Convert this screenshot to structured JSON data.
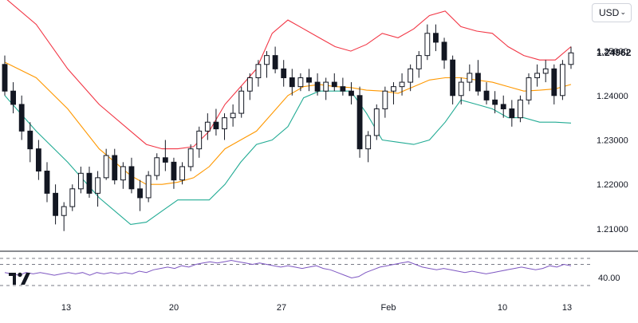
{
  "currency_selector": {
    "value": "USD"
  },
  "price_label": "1.24962",
  "chart_data": [
    {
      "type": "candlestick",
      "title": "",
      "indicators": [
        "Bollinger Bands (upper, middle, lower)"
      ],
      "x_tick_labels": [
        "13",
        "20",
        "27",
        "Feb",
        "10",
        "13"
      ],
      "y_tick_labels": [
        "1.21000",
        "1.22000",
        "1.23000",
        "1.24000",
        "1.25000"
      ],
      "ylim": [
        1.2055,
        1.2615
      ],
      "last_price": 1.24962,
      "colors": {
        "up_candle": "#ffffff",
        "down_candle": "#131722",
        "upper_band": "#f23645",
        "middle_band": "#ff9800",
        "lower_band": "#22ab94"
      },
      "series": [
        {
          "name": "upper-band",
          "x": [
            0,
            4,
            8,
            12,
            16,
            18,
            20,
            22,
            24,
            26,
            28,
            30,
            32,
            34,
            36,
            38,
            40,
            42,
            44,
            46,
            48,
            50,
            52,
            54,
            56,
            58,
            60,
            62,
            64,
            66,
            68,
            70,
            72
          ],
          "values": [
            1.262,
            1.256,
            1.246,
            1.238,
            1.232,
            1.229,
            1.228,
            1.228,
            1.2285,
            1.232,
            1.238,
            1.242,
            1.246,
            1.254,
            1.257,
            1.255,
            1.253,
            1.251,
            1.25,
            1.2515,
            1.254,
            1.253,
            1.255,
            1.258,
            1.259,
            1.2555,
            1.2545,
            1.254,
            1.251,
            1.249,
            1.248,
            1.248,
            1.251
          ]
        },
        {
          "name": "middle-band",
          "x": [
            0,
            4,
            8,
            12,
            16,
            18,
            20,
            22,
            24,
            26,
            28,
            30,
            32,
            34,
            36,
            38,
            40,
            42,
            44,
            46,
            48,
            50,
            52,
            54,
            56,
            58,
            60,
            62,
            64,
            66,
            68,
            70,
            72
          ],
          "values": [
            1.2475,
            1.244,
            1.237,
            1.228,
            1.222,
            1.22,
            1.22,
            1.2205,
            1.2215,
            1.224,
            1.228,
            1.23,
            1.232,
            1.236,
            1.24,
            1.242,
            1.2425,
            1.242,
            1.2418,
            1.2412,
            1.241,
            1.2405,
            1.242,
            1.2435,
            1.244,
            1.244,
            1.2435,
            1.243,
            1.242,
            1.241,
            1.2412,
            1.2415,
            1.2425
          ]
        },
        {
          "name": "lower-band",
          "x": [
            0,
            4,
            8,
            12,
            16,
            18,
            20,
            22,
            24,
            26,
            28,
            30,
            32,
            34,
            36,
            38,
            40,
            42,
            44,
            46,
            48,
            50,
            52,
            54,
            56,
            58,
            60,
            62,
            64,
            66,
            68,
            70,
            72
          ],
          "values": [
            1.24,
            1.232,
            1.225,
            1.217,
            1.211,
            1.2115,
            1.214,
            1.2165,
            1.2165,
            1.2165,
            1.22,
            1.225,
            1.229,
            1.23,
            1.233,
            1.2395,
            1.241,
            1.241,
            1.241,
            1.236,
            1.23,
            1.2295,
            1.229,
            1.23,
            1.234,
            1.239,
            1.238,
            1.237,
            1.235,
            1.235,
            1.234,
            1.234,
            1.2338
          ]
        },
        {
          "name": "price-candles",
          "fields": [
            "open",
            "high",
            "low",
            "close"
          ],
          "values": [
            [
              1.247,
              1.249,
              1.24,
              1.241
            ],
            [
              1.241,
              1.243,
              1.236,
              1.238
            ],
            [
              1.238,
              1.24,
              1.23,
              1.232
            ],
            [
              1.232,
              1.234,
              1.225,
              1.228
            ],
            [
              1.228,
              1.23,
              1.221,
              1.223
            ],
            [
              1.223,
              1.225,
              1.216,
              1.218
            ],
            [
              1.218,
              1.22,
              1.211,
              1.213
            ],
            [
              1.213,
              1.216,
              1.2095,
              1.215
            ],
            [
              1.215,
              1.22,
              1.214,
              1.219
            ],
            [
              1.219,
              1.224,
              1.218,
              1.2225
            ],
            [
              1.2225,
              1.224,
              1.217,
              1.218
            ],
            [
              1.218,
              1.223,
              1.215,
              1.2215
            ],
            [
              1.2215,
              1.228,
              1.221,
              1.2265
            ],
            [
              1.2265,
              1.228,
              1.22,
              1.221
            ],
            [
              1.221,
              1.225,
              1.219,
              1.224
            ],
            [
              1.224,
              1.226,
              1.218,
              1.219
            ],
            [
              1.219,
              1.221,
              1.214,
              1.217
            ],
            [
              1.217,
              1.223,
              1.216,
              1.222
            ],
            [
              1.222,
              1.227,
              1.221,
              1.226
            ],
            [
              1.226,
              1.23,
              1.223,
              1.225
            ],
            [
              1.225,
              1.226,
              1.219,
              1.221
            ],
            [
              1.221,
              1.225,
              1.22,
              1.224
            ],
            [
              1.224,
              1.229,
              1.223,
              1.228
            ],
            [
              1.228,
              1.233,
              1.226,
              1.232
            ],
            [
              1.232,
              1.236,
              1.23,
              1.234
            ],
            [
              1.234,
              1.237,
              1.231,
              1.2325
            ],
            [
              1.2325,
              1.236,
              1.23,
              1.235
            ],
            [
              1.235,
              1.238,
              1.233,
              1.236
            ],
            [
              1.236,
              1.242,
              1.235,
              1.241
            ],
            [
              1.241,
              1.245,
              1.239,
              1.244
            ],
            [
              1.244,
              1.248,
              1.242,
              1.247
            ],
            [
              1.247,
              1.25,
              1.244,
              1.249
            ],
            [
              1.249,
              1.251,
              1.245,
              1.246
            ],
            [
              1.246,
              1.248,
              1.242,
              1.244
            ],
            [
              1.244,
              1.246,
              1.24,
              1.242
            ],
            [
              1.242,
              1.245,
              1.241,
              1.244
            ],
            [
              1.244,
              1.246,
              1.241,
              1.243
            ],
            [
              1.243,
              1.245,
              1.24,
              1.241
            ],
            [
              1.241,
              1.244,
              1.239,
              1.243
            ],
            [
              1.243,
              1.245,
              1.241,
              1.242
            ],
            [
              1.242,
              1.244,
              1.24,
              1.241
            ],
            [
              1.241,
              1.243,
              1.238,
              1.24
            ],
            [
              1.24,
              1.242,
              1.226,
              1.228
            ],
            [
              1.228,
              1.232,
              1.225,
              1.231
            ],
            [
              1.231,
              1.238,
              1.23,
              1.237
            ],
            [
              1.237,
              1.242,
              1.235,
              1.241
            ],
            [
              1.241,
              1.243,
              1.238,
              1.242
            ],
            [
              1.242,
              1.245,
              1.24,
              1.243
            ],
            [
              1.243,
              1.247,
              1.241,
              1.246
            ],
            [
              1.246,
              1.25,
              1.244,
              1.249
            ],
            [
              1.249,
              1.256,
              1.248,
              1.254
            ],
            [
              1.254,
              1.256,
              1.25,
              1.252
            ],
            [
              1.252,
              1.253,
              1.246,
              1.248
            ],
            [
              1.248,
              1.249,
              1.238,
              1.24
            ],
            [
              1.24,
              1.244,
              1.238,
              1.243
            ],
            [
              1.243,
              1.247,
              1.241,
              1.245
            ],
            [
              1.245,
              1.248,
              1.24,
              1.241
            ],
            [
              1.241,
              1.243,
              1.238,
              1.239
            ],
            [
              1.239,
              1.241,
              1.236,
              1.238
            ],
            [
              1.238,
              1.24,
              1.235,
              1.237
            ],
            [
              1.237,
              1.239,
              1.233,
              1.235
            ],
            [
              1.235,
              1.24,
              1.234,
              1.239
            ],
            [
              1.239,
              1.245,
              1.238,
              1.244
            ],
            [
              1.244,
              1.247,
              1.242,
              1.245
            ],
            [
              1.245,
              1.248,
              1.243,
              1.246
            ],
            [
              1.246,
              1.247,
              1.238,
              1.24
            ],
            [
              1.24,
              1.248,
              1.239,
              1.247
            ],
            [
              1.247,
              1.251,
              1.246,
              1.2496
            ]
          ]
        }
      ]
    },
    {
      "type": "line",
      "title": "",
      "y_tick_labels": [
        "40.00"
      ],
      "ylim": [
        32,
        58
      ],
      "reference_levels": [
        30,
        50,
        70
      ],
      "colors": {
        "line": "#7e57c2",
        "levels": "#787b86"
      },
      "series": [
        {
          "name": "oscillator",
          "values": [
            44,
            43,
            42,
            44,
            43,
            44,
            43,
            42,
            43,
            44,
            43,
            44,
            42,
            44,
            43,
            44,
            43,
            44,
            43,
            45,
            44,
            46,
            47,
            48,
            47,
            49,
            48,
            50,
            51,
            52,
            51,
            52,
            53,
            52,
            51,
            50,
            51,
            50,
            49,
            48,
            49,
            48,
            47,
            48,
            49,
            47,
            46,
            44,
            42,
            40,
            41,
            44,
            46,
            48,
            49,
            50,
            51,
            52,
            50,
            48,
            47,
            46,
            47,
            46,
            45,
            44,
            45,
            44,
            43,
            44,
            45,
            46,
            47,
            48,
            47,
            46,
            47,
            49,
            48,
            50,
            49
          ]
        }
      ]
    }
  ]
}
